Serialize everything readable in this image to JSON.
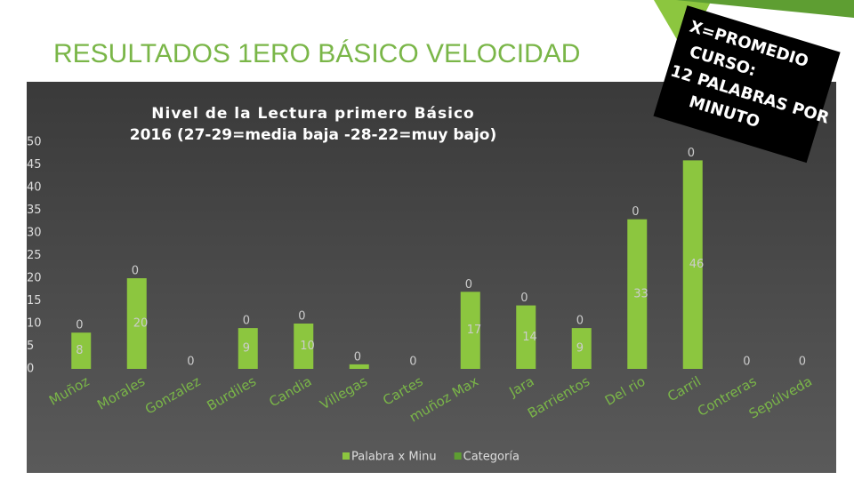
{
  "slide_title": "RESULTADOS 1ERO BÁSICO VELOCIDAD",
  "note": [
    "X=PROMEDIO",
    "CURSO:",
    "12 PALABRAS POR",
    "MINUTO"
  ],
  "chart_data": {
    "type": "bar",
    "stacked": true,
    "title": "Nivel de la Lectura primero Básico",
    "subtitle": "2016   (27-29=media baja -28-22=muy bajo)",
    "categories": [
      "Muñoz",
      "Morales",
      "Gonzalez",
      "Burdiles",
      "Candia",
      "Villegas",
      "Cartes",
      "muñoz Max",
      "Jara",
      "Barrientos",
      "Del rio",
      "Carril",
      "Contreras",
      "Sepúlveda"
    ],
    "series": [
      {
        "name": "Palabra x Minu",
        "color": "#8cc63f",
        "values": [
          8,
          20,
          0,
          9,
          10,
          1,
          0,
          17,
          14,
          9,
          33,
          46,
          0,
          0
        ],
        "value_labels": [
          "8",
          "20",
          null,
          "9",
          "10",
          null,
          null,
          "17",
          "14",
          "9",
          "33",
          "46",
          null,
          null
        ]
      },
      {
        "name": "Categoría",
        "color": "#5e9e32",
        "values": [
          0,
          0,
          0,
          0,
          0,
          0,
          0,
          0,
          0,
          0,
          0,
          0,
          0,
          0
        ]
      }
    ],
    "ylim": [
      0,
      50
    ],
    "yticks": [
      0,
      5,
      10,
      15,
      20,
      25,
      30,
      35,
      40,
      45,
      50
    ],
    "grid": false
  }
}
